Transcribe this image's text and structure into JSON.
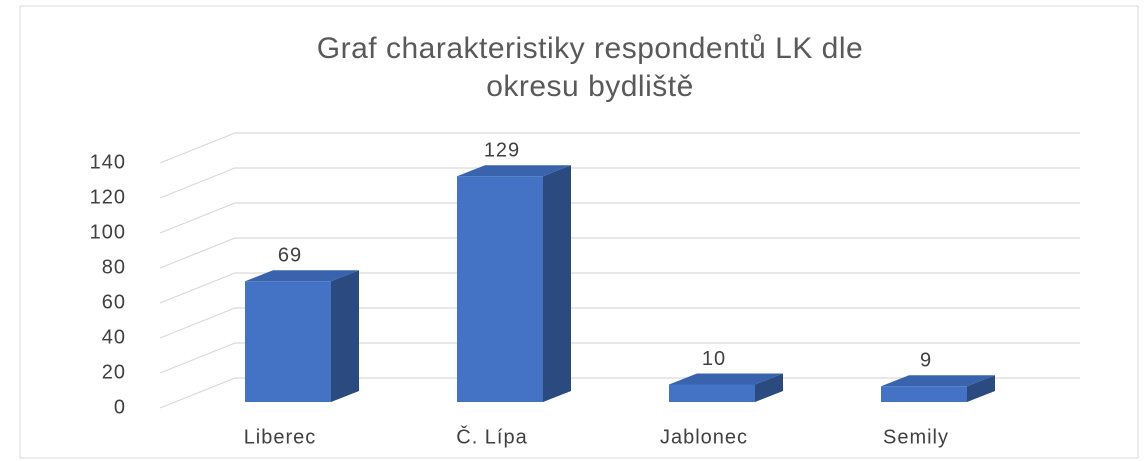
{
  "chart_data": {
    "type": "bar3d",
    "title": "Graf charakteristiky respondentů LK dle okresu bydliště",
    "categories": [
      "Liberec",
      "Č. Lípa",
      "Jablonec",
      "Semily"
    ],
    "values": [
      69,
      129,
      10,
      9
    ],
    "color": "#4472c4",
    "ylim": [
      0,
      140
    ],
    "yticks": [
      0,
      20,
      40,
      60,
      80,
      100,
      120,
      140
    ],
    "grid": true
  }
}
